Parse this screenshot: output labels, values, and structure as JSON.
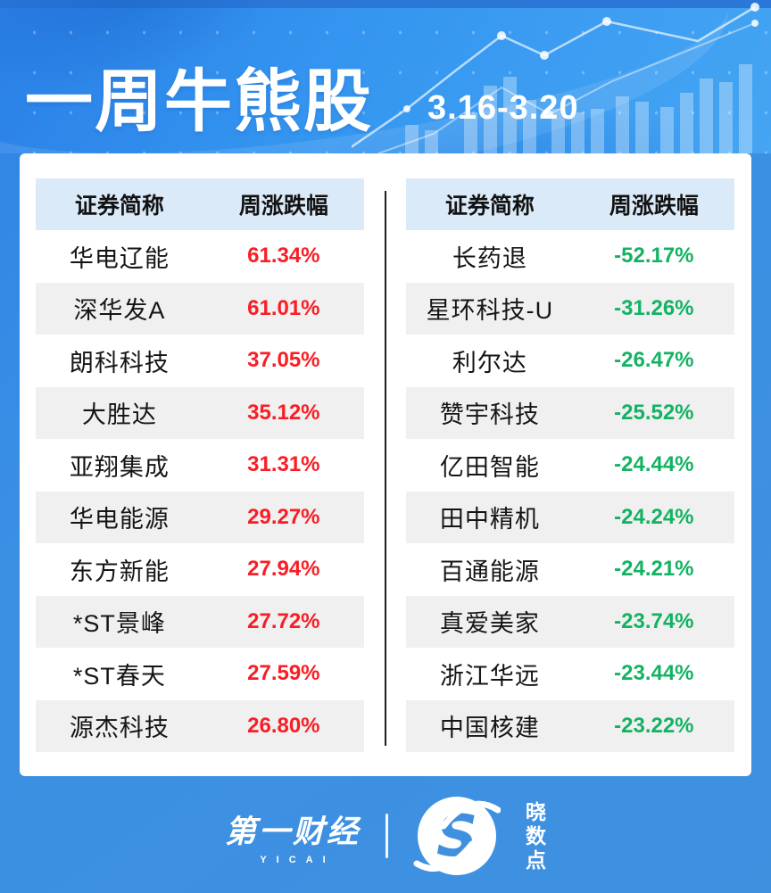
{
  "header": {
    "title": "一周牛熊股",
    "date_range": "3.16-3.20"
  },
  "tables": {
    "columns": [
      "证券简称",
      "周涨跌幅"
    ],
    "gainers": [
      {
        "name": "华电辽能",
        "change": "61.34%"
      },
      {
        "name": "深华发A",
        "change": "61.01%"
      },
      {
        "name": "朗科科技",
        "change": "37.05%"
      },
      {
        "name": "大胜达",
        "change": "35.12%"
      },
      {
        "name": "亚翔集成",
        "change": "31.31%"
      },
      {
        "name": "华电能源",
        "change": "29.27%"
      },
      {
        "name": "东方新能",
        "change": "27.94%"
      },
      {
        "name": "*ST景峰",
        "change": "27.72%"
      },
      {
        "name": "*ST春天",
        "change": "27.59%"
      },
      {
        "name": "源杰科技",
        "change": "26.80%"
      }
    ],
    "losers": [
      {
        "name": "长药退",
        "change": "-52.17%"
      },
      {
        "name": "星环科技-U",
        "change": "-31.26%"
      },
      {
        "name": "利尔达",
        "change": "-26.47%"
      },
      {
        "name": "赞宇科技",
        "change": "-25.52%"
      },
      {
        "name": "亿田智能",
        "change": "-24.44%"
      },
      {
        "name": "田中精机",
        "change": "-24.24%"
      },
      {
        "name": "百通能源",
        "change": "-24.21%"
      },
      {
        "name": "真爱美家",
        "change": "-23.74%"
      },
      {
        "name": "浙江华远",
        "change": "-23.44%"
      },
      {
        "name": "中国核建",
        "change": "-23.22%"
      }
    ]
  },
  "footer": {
    "brand_primary": "第一财经",
    "brand_primary_sub": "YICAI",
    "brand_secondary_chars": [
      "晓",
      "数",
      "点"
    ],
    "brand_secondary_initial": "S"
  },
  "colors": {
    "gain": "#f91d25",
    "loss": "#14b263",
    "table_header_bg": "#dbeaf8",
    "row_alt_bg": "#f0f0f0",
    "page_blue": "#3f90df",
    "divider": "#1c1c1c"
  },
  "chart_data": {
    "type": "table",
    "title": "一周牛熊股 3.16-3.20",
    "tables": [
      {
        "name": "weekly_top_gainers",
        "columns": [
          "证券简称",
          "周涨跌幅"
        ],
        "categories": [
          "华电辽能",
          "深华发A",
          "朗科科技",
          "大胜达",
          "亚翔集成",
          "华电能源",
          "东方新能",
          "*ST景峰",
          "*ST春天",
          "源杰科技"
        ],
        "values": [
          61.34,
          61.01,
          37.05,
          35.12,
          31.31,
          29.27,
          27.94,
          27.72,
          27.59,
          26.8
        ],
        "unit": "%"
      },
      {
        "name": "weekly_top_losers",
        "columns": [
          "证券简称",
          "周涨跌幅"
        ],
        "categories": [
          "长药退",
          "星环科技-U",
          "利尔达",
          "赞宇科技",
          "亿田智能",
          "田中精机",
          "百通能源",
          "真爱美家",
          "浙江华远",
          "中国核建"
        ],
        "values": [
          -52.17,
          -31.26,
          -26.47,
          -25.52,
          -24.44,
          -24.24,
          -24.21,
          -23.74,
          -23.44,
          -23.22
        ],
        "unit": "%"
      }
    ]
  }
}
